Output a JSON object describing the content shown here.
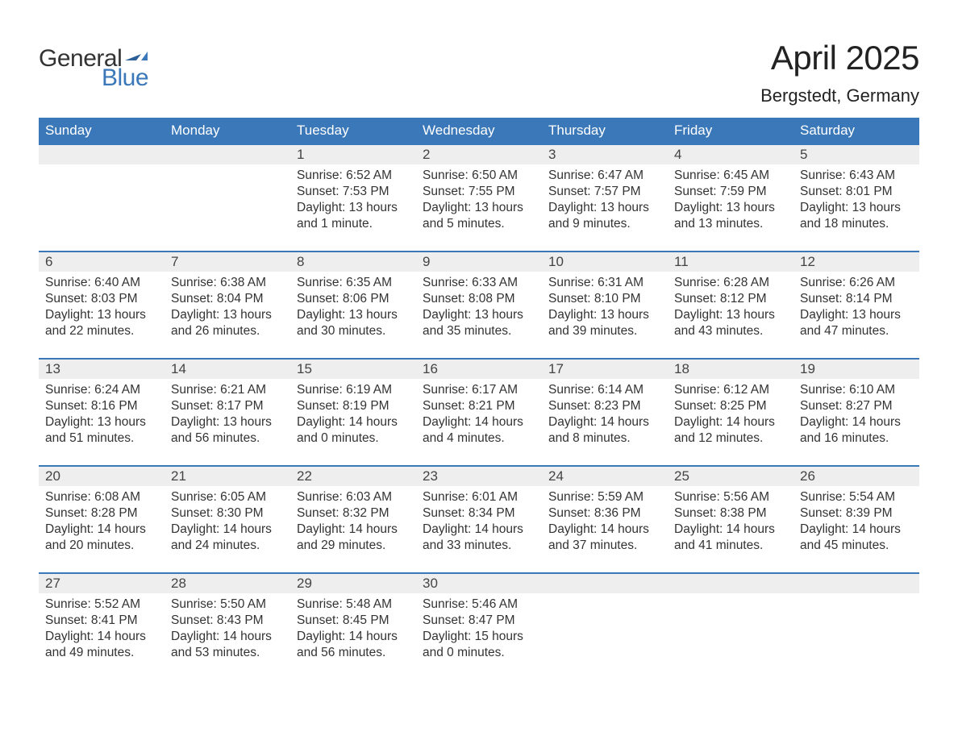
{
  "logo": {
    "text1": "General",
    "text2": "Blue",
    "color_general": "#333333",
    "color_blue": "#3b78b9"
  },
  "title": "April 2025",
  "location": "Bergstedt, Germany",
  "colors": {
    "header_bg": "#3b78b9",
    "header_fg": "#ffffff",
    "daynum_bg": "#eeeeee",
    "row_border": "#3b78b9",
    "text": "#333333"
  },
  "day_headers": [
    "Sunday",
    "Monday",
    "Tuesday",
    "Wednesday",
    "Thursday",
    "Friday",
    "Saturday"
  ],
  "weeks": [
    [
      null,
      null,
      {
        "n": "1",
        "sunrise": "6:52 AM",
        "sunset": "7:53 PM",
        "daylight": "13 hours and 1 minute."
      },
      {
        "n": "2",
        "sunrise": "6:50 AM",
        "sunset": "7:55 PM",
        "daylight": "13 hours and 5 minutes."
      },
      {
        "n": "3",
        "sunrise": "6:47 AM",
        "sunset": "7:57 PM",
        "daylight": "13 hours and 9 minutes."
      },
      {
        "n": "4",
        "sunrise": "6:45 AM",
        "sunset": "7:59 PM",
        "daylight": "13 hours and 13 minutes."
      },
      {
        "n": "5",
        "sunrise": "6:43 AM",
        "sunset": "8:01 PM",
        "daylight": "13 hours and 18 minutes."
      }
    ],
    [
      {
        "n": "6",
        "sunrise": "6:40 AM",
        "sunset": "8:03 PM",
        "daylight": "13 hours and 22 minutes."
      },
      {
        "n": "7",
        "sunrise": "6:38 AM",
        "sunset": "8:04 PM",
        "daylight": "13 hours and 26 minutes."
      },
      {
        "n": "8",
        "sunrise": "6:35 AM",
        "sunset": "8:06 PM",
        "daylight": "13 hours and 30 minutes."
      },
      {
        "n": "9",
        "sunrise": "6:33 AM",
        "sunset": "8:08 PM",
        "daylight": "13 hours and 35 minutes."
      },
      {
        "n": "10",
        "sunrise": "6:31 AM",
        "sunset": "8:10 PM",
        "daylight": "13 hours and 39 minutes."
      },
      {
        "n": "11",
        "sunrise": "6:28 AM",
        "sunset": "8:12 PM",
        "daylight": "13 hours and 43 minutes."
      },
      {
        "n": "12",
        "sunrise": "6:26 AM",
        "sunset": "8:14 PM",
        "daylight": "13 hours and 47 minutes."
      }
    ],
    [
      {
        "n": "13",
        "sunrise": "6:24 AM",
        "sunset": "8:16 PM",
        "daylight": "13 hours and 51 minutes."
      },
      {
        "n": "14",
        "sunrise": "6:21 AM",
        "sunset": "8:17 PM",
        "daylight": "13 hours and 56 minutes."
      },
      {
        "n": "15",
        "sunrise": "6:19 AM",
        "sunset": "8:19 PM",
        "daylight": "14 hours and 0 minutes."
      },
      {
        "n": "16",
        "sunrise": "6:17 AM",
        "sunset": "8:21 PM",
        "daylight": "14 hours and 4 minutes."
      },
      {
        "n": "17",
        "sunrise": "6:14 AM",
        "sunset": "8:23 PM",
        "daylight": "14 hours and 8 minutes."
      },
      {
        "n": "18",
        "sunrise": "6:12 AM",
        "sunset": "8:25 PM",
        "daylight": "14 hours and 12 minutes."
      },
      {
        "n": "19",
        "sunrise": "6:10 AM",
        "sunset": "8:27 PM",
        "daylight": "14 hours and 16 minutes."
      }
    ],
    [
      {
        "n": "20",
        "sunrise": "6:08 AM",
        "sunset": "8:28 PM",
        "daylight": "14 hours and 20 minutes."
      },
      {
        "n": "21",
        "sunrise": "6:05 AM",
        "sunset": "8:30 PM",
        "daylight": "14 hours and 24 minutes."
      },
      {
        "n": "22",
        "sunrise": "6:03 AM",
        "sunset": "8:32 PM",
        "daylight": "14 hours and 29 minutes."
      },
      {
        "n": "23",
        "sunrise": "6:01 AM",
        "sunset": "8:34 PM",
        "daylight": "14 hours and 33 minutes."
      },
      {
        "n": "24",
        "sunrise": "5:59 AM",
        "sunset": "8:36 PM",
        "daylight": "14 hours and 37 minutes."
      },
      {
        "n": "25",
        "sunrise": "5:56 AM",
        "sunset": "8:38 PM",
        "daylight": "14 hours and 41 minutes."
      },
      {
        "n": "26",
        "sunrise": "5:54 AM",
        "sunset": "8:39 PM",
        "daylight": "14 hours and 45 minutes."
      }
    ],
    [
      {
        "n": "27",
        "sunrise": "5:52 AM",
        "sunset": "8:41 PM",
        "daylight": "14 hours and 49 minutes."
      },
      {
        "n": "28",
        "sunrise": "5:50 AM",
        "sunset": "8:43 PM",
        "daylight": "14 hours and 53 minutes."
      },
      {
        "n": "29",
        "sunrise": "5:48 AM",
        "sunset": "8:45 PM",
        "daylight": "14 hours and 56 minutes."
      },
      {
        "n": "30",
        "sunrise": "5:46 AM",
        "sunset": "8:47 PM",
        "daylight": "15 hours and 0 minutes."
      },
      null,
      null,
      null
    ]
  ],
  "labels": {
    "sunrise": "Sunrise: ",
    "sunset": "Sunset: ",
    "daylight": "Daylight: "
  }
}
